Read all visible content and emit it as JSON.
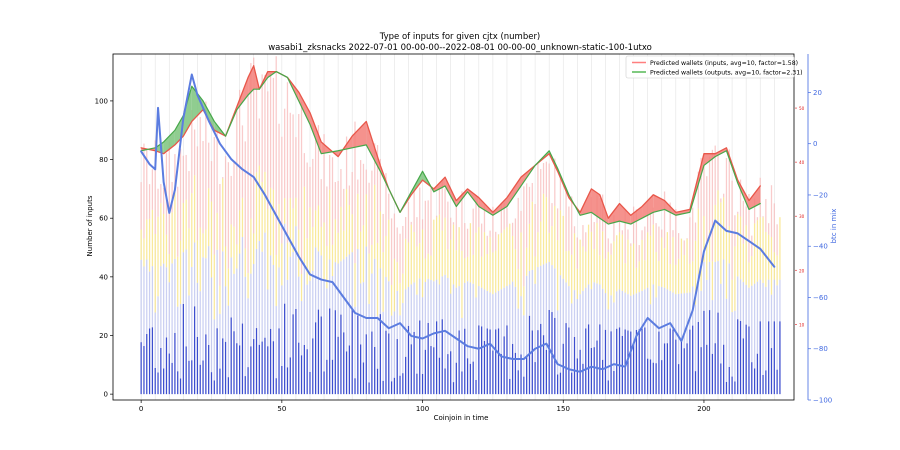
{
  "chart_data": {
    "type": "line",
    "title": "Type of inputs for given cjtx (number)",
    "subtitle": "wasabi1_zksnacks 2022-07-01 00-00-00--2022-08-01 00-00-00_unknown-static-100-1utxo",
    "xlabel": "Coinjoin in time",
    "ylabel": "Number of inputs",
    "y2label": "btc in mix",
    "xlim": [
      -10,
      232
    ],
    "ylim": [
      -2,
      116
    ],
    "y2lim": [
      -100,
      35
    ],
    "y3lim": [
      -4,
      60
    ],
    "xticks": [
      0,
      50,
      100,
      150,
      200
    ],
    "yticks": [
      0,
      20,
      40,
      60,
      80,
      100
    ],
    "y2ticks": [
      20,
      0,
      -20,
      -40,
      -60,
      -80,
      -100
    ],
    "y2ticklabels": [
      "20",
      "0",
      "−20",
      "−40",
      "−60",
      "−80",
      "−100"
    ],
    "y3ticks": [
      10,
      20,
      30,
      40,
      50
    ],
    "grid": "vertical",
    "legend_position": "top-right",
    "legend": [
      {
        "label": "Predicted wallets (inputs, avg=10, factor=1.58)",
        "color": "#ff7f7f"
      },
      {
        "label": "Predicted wallets (outputs, avg=10, factor=2.31)",
        "color": "#55b955"
      }
    ],
    "predicted_inputs": {
      "x": [
        0,
        5,
        8,
        12,
        15,
        18,
        22,
        26,
        30,
        34,
        38,
        40,
        42,
        45,
        48,
        52,
        56,
        60,
        64,
        70,
        75,
        80,
        85,
        88,
        92,
        96,
        100,
        104,
        108,
        112,
        116,
        120,
        125,
        130,
        135,
        140,
        145,
        148,
        152,
        156,
        160,
        163,
        166,
        170,
        174,
        178,
        182,
        186,
        190,
        195,
        200,
        204,
        208,
        212,
        216,
        220
      ],
      "y": [
        84,
        83,
        82,
        85,
        88,
        93,
        97,
        90,
        88,
        98,
        108,
        112,
        104,
        110,
        110,
        108,
        103,
        96,
        86,
        81,
        88,
        93,
        78,
        70,
        62,
        68,
        73,
        70,
        74,
        66,
        70,
        67,
        62,
        67,
        74,
        78,
        82,
        76,
        67,
        62,
        70,
        68,
        60,
        65,
        61,
        64,
        68,
        66,
        62,
        63,
        82,
        82,
        84,
        73,
        66,
        71
      ]
    },
    "predicted_outputs": {
      "x": [
        0,
        5,
        8,
        12,
        15,
        18,
        22,
        26,
        30,
        34,
        38,
        40,
        42,
        45,
        48,
        52,
        56,
        60,
        64,
        70,
        75,
        80,
        85,
        88,
        92,
        96,
        100,
        104,
        108,
        112,
        116,
        120,
        125,
        130,
        135,
        140,
        145,
        148,
        152,
        156,
        160,
        163,
        166,
        170,
        174,
        178,
        182,
        186,
        190,
        195,
        200,
        204,
        208,
        212,
        216,
        220
      ],
      "y": [
        83,
        84,
        86,
        90,
        95,
        105,
        100,
        93,
        88,
        97,
        102,
        104,
        104,
        108,
        110,
        108,
        100,
        92,
        82,
        83,
        84,
        85,
        76,
        70,
        62,
        69,
        76,
        69,
        71,
        64,
        69,
        64,
        61,
        64,
        71,
        78,
        83,
        77,
        68,
        61,
        62,
        60,
        58,
        59,
        58,
        60,
        62,
        63,
        61,
        62,
        78,
        81,
        83,
        72,
        63,
        65
      ]
    },
    "btc_in_mix": {
      "x": [
        0,
        3,
        5,
        6,
        8,
        10,
        12,
        15,
        18,
        20,
        24,
        28,
        32,
        36,
        40,
        44,
        48,
        52,
        56,
        60,
        64,
        68,
        72,
        76,
        80,
        84,
        88,
        92,
        96,
        100,
        104,
        108,
        112,
        116,
        120,
        124,
        128,
        132,
        136,
        140,
        144,
        148,
        152,
        156,
        160,
        164,
        168,
        172,
        176,
        180,
        184,
        188,
        192,
        196,
        200,
        204,
        208,
        212,
        216,
        220,
        225
      ],
      "y": [
        -3,
        -8,
        -10,
        14,
        -15,
        -27,
        -18,
        10,
        27,
        19,
        9,
        0,
        -6,
        -10,
        -13,
        -20,
        -28,
        -36,
        -44,
        -51,
        -53,
        -54,
        -60,
        -66,
        -68,
        -68,
        -72,
        -70,
        -75,
        -76,
        -74,
        -73,
        -76,
        -79,
        -80,
        -78,
        -83,
        -84,
        -84,
        -80,
        -78,
        -86,
        -88,
        -89,
        -87,
        -88,
        -86,
        -87,
        -75,
        -68,
        -72,
        -70,
        -77,
        -65,
        -42,
        -30,
        -34,
        -35,
        -38,
        -41,
        -48
      ]
    },
    "bars": {
      "note": "stacked bars per coinjoin: blue (bottom), light blue, yellow, pink (top)",
      "count": 228,
      "colors": [
        "#3344cc",
        "#b9c0ee",
        "#f7e27a",
        "#f7b9b9"
      ]
    },
    "colors": {
      "inputs_line": "#e8574a",
      "inputs_fill": "#f37f79",
      "outputs_line": "#47a84a",
      "outputs_fill": "#7cc47c",
      "btc_line": "#5b7ce0",
      "y2_axis": "#4169e1",
      "y3_axis": "#e02020"
    }
  }
}
